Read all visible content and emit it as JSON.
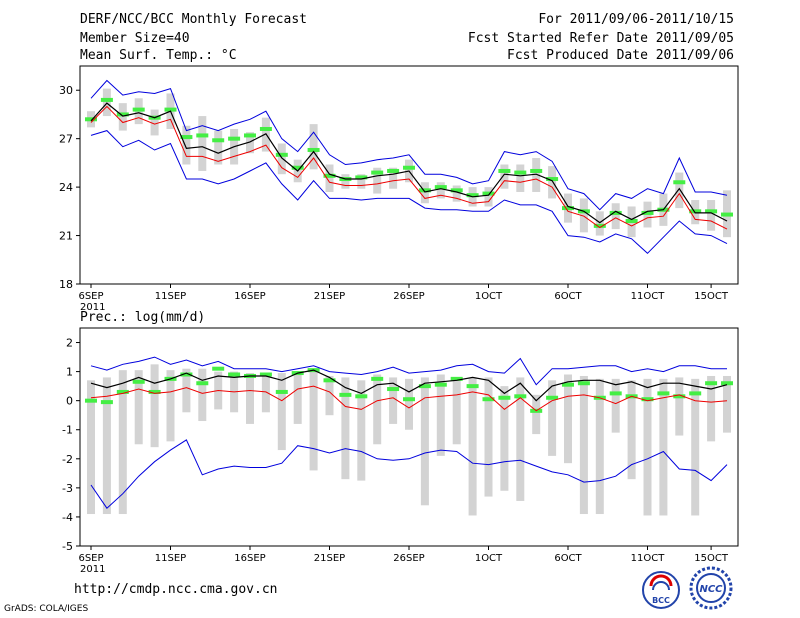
{
  "header": {
    "title": "DERF/NCC/BCC Monthly Forecast",
    "member_size": "Member Size=40",
    "variable": "Mean Surf. Temp.: °C",
    "forecast_period": "For 2011/09/06-2011/10/15",
    "started_refer": "Fcst Started Refer Date 2011/09/05",
    "produced": "Fcst Produced Date 2011/09/06"
  },
  "footer": {
    "url": "http://cmdp.ncc.cma.gov.cn",
    "grads": "GrADS: COLA/IGES",
    "logo_bcc_text": "BCC",
    "logo_ncc_text": "NCC"
  },
  "colors": {
    "box": "#d3d3d3",
    "green": "#44ee44",
    "mean": "#000000",
    "red": "#ee0000",
    "blue": "#0000dd"
  },
  "chart_data": [
    {
      "type": "line",
      "name": "temperature",
      "title": "Mean Surf. Temp.: °C",
      "ylabel": "°C",
      "ylim": [
        18,
        31.5
      ],
      "yticks": [
        18,
        21,
        24,
        27,
        30
      ],
      "x_days": 41,
      "xticks": [
        {
          "day": 1,
          "label": "6SEP",
          "sub": "2011"
        },
        {
          "day": 6,
          "label": "11SEP"
        },
        {
          "day": 11,
          "label": "16SEP"
        },
        {
          "day": 16,
          "label": "21SEP"
        },
        {
          "day": 21,
          "label": "26SEP"
        },
        {
          "day": 26,
          "label": "1OCT"
        },
        {
          "day": 31,
          "label": "6OCT"
        },
        {
          "day": 36,
          "label": "11OCT"
        },
        {
          "day": 40,
          "label": "15OCT"
        }
      ],
      "series": [
        {
          "name": "mean",
          "values": [
            28.1,
            29.2,
            28.4,
            28.6,
            28.3,
            28.7,
            26.4,
            26.5,
            26.1,
            26.5,
            26.8,
            27.3,
            25.8,
            25.0,
            26.2,
            24.8,
            24.5,
            24.5,
            24.7,
            24.8,
            25.0,
            23.7,
            23.9,
            23.7,
            23.4,
            23.5,
            24.8,
            24.7,
            24.8,
            24.4,
            22.8,
            22.5,
            21.8,
            22.5,
            22.0,
            22.5,
            22.6,
            23.9,
            22.4,
            22.4,
            21.9
          ]
        },
        {
          "name": "red",
          "values": [
            28.0,
            29.0,
            28.0,
            28.3,
            27.9,
            28.2,
            25.9,
            25.9,
            25.6,
            25.9,
            26.2,
            26.6,
            25.2,
            24.6,
            25.8,
            24.3,
            24.1,
            24.1,
            24.2,
            24.4,
            24.5,
            23.3,
            23.5,
            23.3,
            23.0,
            23.1,
            24.4,
            24.3,
            24.5,
            24.0,
            22.5,
            22.2,
            21.5,
            22.1,
            21.6,
            22.1,
            22.2,
            23.6,
            22.0,
            21.9,
            21.4
          ]
        },
        {
          "name": "green",
          "values": [
            28.2,
            29.4,
            28.5,
            28.8,
            28.3,
            28.8,
            27.1,
            27.2,
            26.9,
            27.0,
            27.2,
            27.6,
            26.0,
            25.2,
            26.3,
            24.7,
            24.5,
            24.6,
            24.9,
            25.0,
            25.2,
            23.8,
            24.0,
            23.8,
            23.5,
            23.6,
            25.0,
            24.9,
            25.0,
            24.5,
            22.7,
            22.5,
            21.6,
            22.4,
            21.9,
            22.4,
            22.6,
            24.3,
            22.5,
            22.5,
            22.3
          ]
        },
        {
          "name": "blue_max",
          "values": [
            29.5,
            30.6,
            29.7,
            29.9,
            29.8,
            30.1,
            27.5,
            27.8,
            27.5,
            27.9,
            28.2,
            28.7,
            27.0,
            26.2,
            27.4,
            26.0,
            25.4,
            25.5,
            25.7,
            25.8,
            26.0,
            24.8,
            24.8,
            24.6,
            24.2,
            24.4,
            26.2,
            26.0,
            26.2,
            25.6,
            23.9,
            23.6,
            22.6,
            23.6,
            23.3,
            23.9,
            23.6,
            25.8,
            23.7,
            23.7,
            23.5
          ]
        },
        {
          "name": "blue_min",
          "values": [
            27.2,
            27.5,
            26.5,
            26.9,
            26.3,
            26.7,
            24.5,
            24.5,
            24.2,
            24.5,
            25.0,
            25.5,
            24.2,
            23.2,
            24.4,
            23.3,
            23.3,
            23.2,
            23.3,
            23.3,
            23.3,
            22.7,
            22.6,
            22.6,
            22.5,
            22.5,
            23.2,
            22.9,
            22.9,
            22.5,
            21.0,
            20.9,
            20.6,
            21.1,
            20.8,
            19.9,
            20.9,
            21.9,
            21.1,
            21.0,
            20.5
          ]
        },
        {
          "name": "box_high",
          "values": [
            28.7,
            30.1,
            29.2,
            29.5,
            28.8,
            29.8,
            27.8,
            28.4,
            27.5,
            27.6,
            27.4,
            28.3,
            26.7,
            25.7,
            27.9,
            25.4,
            24.8,
            24.8,
            25.2,
            25.2,
            25.7,
            24.3,
            24.3,
            24.1,
            24.0,
            24.0,
            25.4,
            25.4,
            25.8,
            25.3,
            23.6,
            23.3,
            22.5,
            23.0,
            22.8,
            23.1,
            23.6,
            24.9,
            23.2,
            23.2,
            23.8
          ]
        },
        {
          "name": "box_low",
          "values": [
            27.7,
            28.4,
            27.5,
            27.9,
            27.2,
            27.6,
            25.4,
            25.0,
            25.4,
            25.4,
            26.1,
            26.2,
            24.8,
            24.3,
            25.1,
            23.7,
            23.9,
            23.9,
            23.6,
            23.9,
            24.3,
            23.0,
            23.3,
            23.1,
            22.8,
            22.8,
            23.9,
            23.7,
            23.7,
            23.3,
            21.8,
            21.2,
            21.0,
            21.4,
            20.9,
            21.5,
            21.6,
            22.7,
            21.7,
            21.3,
            20.9
          ]
        }
      ]
    },
    {
      "type": "line",
      "name": "precipitation",
      "title": "Prec.: log(mm/d)",
      "ylabel": "log(mm/d)",
      "ylim": [
        -5,
        2.5
      ],
      "yticks": [
        -5,
        -4,
        -3,
        -2,
        -1,
        0,
        1,
        2
      ],
      "x_days": 41,
      "xticks": [
        {
          "day": 1,
          "label": "6SEP",
          "sub": "2011"
        },
        {
          "day": 6,
          "label": "11SEP"
        },
        {
          "day": 11,
          "label": "16SEP"
        },
        {
          "day": 16,
          "label": "21SEP"
        },
        {
          "day": 21,
          "label": "26SEP"
        },
        {
          "day": 26,
          "label": "1OCT"
        },
        {
          "day": 31,
          "label": "6OCT"
        },
        {
          "day": 36,
          "label": "11OCT"
        },
        {
          "day": 40,
          "label": "15OCT"
        }
      ],
      "series": [
        {
          "name": "mean",
          "values": [
            0.6,
            0.45,
            0.6,
            0.8,
            0.6,
            0.75,
            0.95,
            0.7,
            0.85,
            0.8,
            0.85,
            0.85,
            0.7,
            0.95,
            1.05,
            0.8,
            0.45,
            0.25,
            0.55,
            0.6,
            0.3,
            0.6,
            0.65,
            0.7,
            0.8,
            0.7,
            0.25,
            0.6,
            0.0,
            0.5,
            0.65,
            0.7,
            0.7,
            0.55,
            0.65,
            0.45,
            0.6,
            0.6,
            0.5,
            0.4,
            0.55
          ]
        },
        {
          "name": "red",
          "values": [
            0.1,
            0.15,
            0.25,
            0.4,
            0.25,
            0.3,
            0.45,
            0.25,
            0.35,
            0.3,
            0.35,
            0.3,
            0.0,
            0.4,
            0.5,
            0.3,
            -0.2,
            -0.3,
            0.0,
            0.1,
            -0.25,
            0.1,
            0.15,
            0.2,
            0.3,
            0.2,
            -0.3,
            0.1,
            -0.35,
            0.0,
            0.15,
            0.2,
            0.1,
            -0.1,
            0.15,
            0.0,
            0.1,
            0.2,
            0.0,
            -0.05,
            0.0
          ]
        },
        {
          "name": "green",
          "values": [
            0.0,
            -0.05,
            0.3,
            0.65,
            0.3,
            0.75,
            0.9,
            0.6,
            1.1,
            0.9,
            0.85,
            0.9,
            0.3,
            0.95,
            1.05,
            0.7,
            0.2,
            0.15,
            0.75,
            0.4,
            0.05,
            0.5,
            0.55,
            0.75,
            0.5,
            0.05,
            0.1,
            0.15,
            -0.35,
            0.1,
            0.55,
            0.6,
            0.1,
            0.25,
            0.15,
            0.05,
            0.25,
            0.15,
            0.25,
            0.6,
            0.6
          ]
        },
        {
          "name": "blue_max",
          "values": [
            1.2,
            1.05,
            1.25,
            1.35,
            1.5,
            1.25,
            1.4,
            1.2,
            1.35,
            1.1,
            1.1,
            1.1,
            1.0,
            1.1,
            1.2,
            1.0,
            0.95,
            0.9,
            1.0,
            1.15,
            0.95,
            1.0,
            1.05,
            1.2,
            1.25,
            1.0,
            0.95,
            1.45,
            0.55,
            1.1,
            1.1,
            1.15,
            1.2,
            1.2,
            1.0,
            1.1,
            1.0,
            1.2,
            1.2,
            1.1,
            1.1
          ]
        },
        {
          "name": "blue_min",
          "values": [
            -2.9,
            -3.7,
            -3.2,
            -2.6,
            -2.1,
            -1.7,
            -1.35,
            -2.55,
            -2.35,
            -2.25,
            -2.3,
            -2.3,
            -2.15,
            -1.55,
            -1.65,
            -1.8,
            -1.65,
            -1.75,
            -2.0,
            -2.05,
            -2.0,
            -1.8,
            -1.7,
            -1.75,
            -2.15,
            -2.2,
            -2.1,
            -2.05,
            -2.25,
            -2.45,
            -2.55,
            -2.8,
            -2.75,
            -2.6,
            -2.2,
            -2.0,
            -1.75,
            -2.35,
            -2.4,
            -2.75,
            -2.2
          ]
        },
        {
          "name": "box_high",
          "values": [
            0.7,
            0.8,
            1.05,
            1.05,
            1.25,
            1.05,
            1.1,
            1.1,
            1.0,
            1.0,
            0.95,
            0.95,
            0.95,
            0.95,
            1.05,
            0.85,
            0.8,
            0.7,
            0.9,
            0.8,
            0.75,
            0.8,
            0.9,
            0.8,
            0.8,
            0.8,
            0.5,
            0.8,
            0.2,
            0.7,
            0.9,
            0.85,
            0.75,
            0.75,
            0.7,
            0.75,
            0.75,
            0.8,
            0.75,
            0.85,
            0.85
          ]
        },
        {
          "name": "box_low",
          "values": [
            -3.9,
            -3.9,
            -3.9,
            -1.5,
            -1.6,
            -1.4,
            -0.4,
            -0.7,
            -0.3,
            -0.4,
            -0.8,
            -0.4,
            -1.7,
            -0.8,
            -2.4,
            -0.5,
            -2.7,
            -2.75,
            -1.5,
            -0.8,
            -1.0,
            -3.6,
            -1.9,
            -1.5,
            -3.95,
            -3.3,
            -3.1,
            -3.45,
            -1.15,
            -1.9,
            -2.15,
            -3.9,
            -3.9,
            -1.1,
            -2.7,
            -3.95,
            -3.95,
            -1.2,
            -3.95,
            -1.4,
            -1.1
          ]
        }
      ]
    }
  ]
}
